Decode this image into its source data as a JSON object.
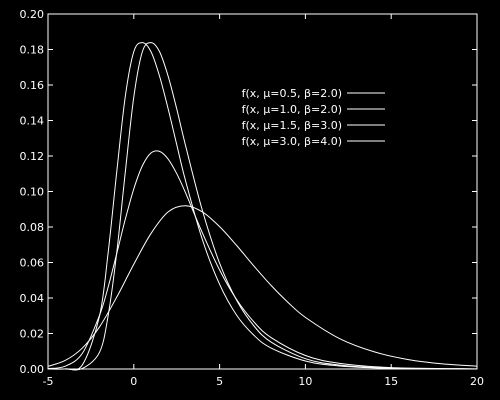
{
  "chart_data": {
    "type": "line",
    "title": "",
    "xlabel": "",
    "ylabel": "",
    "xlim": [
      -5,
      20
    ],
    "ylim": [
      0,
      0.2
    ],
    "x_ticks": [
      -5,
      0,
      5,
      10,
      15,
      20
    ],
    "x_tick_labels": [
      "-5",
      "0",
      "5",
      "10",
      "15",
      "20"
    ],
    "y_ticks": [
      0,
      0.02,
      0.04,
      0.06,
      0.08,
      0.1,
      0.12,
      0.14,
      0.16,
      0.18,
      0.2
    ],
    "y_tick_labels": [
      "0.00",
      "0.02",
      "0.04",
      "0.06",
      "0.08",
      "0.10",
      "0.12",
      "0.14",
      "0.16",
      "0.18",
      "0.20"
    ],
    "grid": false,
    "legend_position": "top-right",
    "line_color": "#ffffff",
    "background_color": "#000000",
    "series": [
      {
        "name": "f(x, μ=0.5, β=2.0)",
        "x": [
          -5,
          -4,
          -3,
          -2,
          -1.5,
          -1,
          -0.5,
          0,
          0.5,
          1,
          1.5,
          2,
          2.5,
          3,
          4,
          5,
          6,
          7,
          8,
          10,
          12,
          15,
          20
        ],
        "y": [
          0.0,
          0.0001,
          0.0023,
          0.0298,
          0.0651,
          0.1105,
          0.1533,
          0.1788,
          0.1839,
          0.1788,
          0.165,
          0.1466,
          0.1265,
          0.1066,
          0.0728,
          0.0477,
          0.0302,
          0.019,
          0.0118,
          0.0045,
          0.0017,
          0.0004,
          0.0
        ]
      },
      {
        "name": "f(x, μ=1.0, β=2.0)",
        "x": [
          -5,
          -4,
          -3,
          -2,
          -1.5,
          -1,
          -0.5,
          0,
          0.5,
          1,
          1.5,
          2,
          2.5,
          3,
          4,
          5,
          6,
          7,
          8,
          10,
          12,
          15,
          20
        ],
        "y": [
          0.0,
          0.0,
          0.0003,
          0.0094,
          0.0298,
          0.0651,
          0.1105,
          0.1533,
          0.1788,
          0.1839,
          0.1788,
          0.165,
          0.1466,
          0.1265,
          0.0892,
          0.0596,
          0.0386,
          0.0243,
          0.0152,
          0.0058,
          0.0022,
          0.0005,
          0.0
        ]
      },
      {
        "name": "f(x, μ=1.5, β=3.0)",
        "x": [
          -5,
          -4,
          -3,
          -2,
          -1.5,
          -1,
          -0.5,
          0,
          0.5,
          1,
          1.5,
          2,
          2.5,
          3,
          4,
          5,
          6,
          7,
          8,
          10,
          12,
          15,
          20
        ],
        "y": [
          0.0002,
          0.0016,
          0.0088,
          0.0302,
          0.046,
          0.0648,
          0.0842,
          0.1015,
          0.1145,
          0.1217,
          0.1226,
          0.1183,
          0.1101,
          0.0996,
          0.0766,
          0.0558,
          0.039,
          0.0265,
          0.0177,
          0.0076,
          0.0032,
          0.0008,
          0.0001
        ]
      },
      {
        "name": "f(x, μ=3.0, β=4.0)",
        "x": [
          -5,
          -4,
          -3,
          -2,
          -1,
          0,
          1,
          2,
          3,
          4,
          5,
          6,
          7,
          8,
          9,
          10,
          12,
          14,
          16,
          18,
          20
        ],
        "y": [
          0.0015,
          0.0048,
          0.0118,
          0.0237,
          0.0404,
          0.059,
          0.0763,
          0.0885,
          0.092,
          0.0885,
          0.0802,
          0.0695,
          0.058,
          0.0471,
          0.0374,
          0.0291,
          0.0171,
          0.0097,
          0.0053,
          0.0029,
          0.0016
        ]
      }
    ]
  }
}
